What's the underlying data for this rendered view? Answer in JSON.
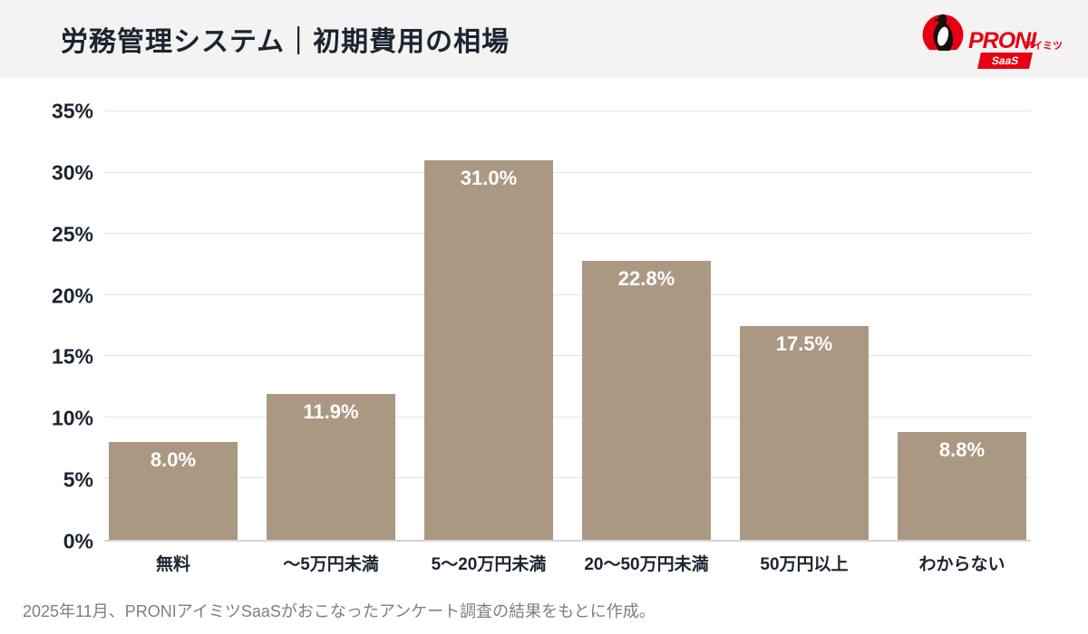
{
  "header": {
    "title": "労務管理システム｜初期費用の相場",
    "logo": {
      "brand": "PRONI",
      "sub": "アイミツ",
      "badge": "SaaS",
      "brand_color": "#e60012",
      "mark": "penguin-on-red-circle"
    }
  },
  "chart_data": {
    "type": "bar",
    "title": "労務管理システム｜初期費用の相場",
    "categories": [
      "無料",
      "～5万円未満",
      "5～20万円未満",
      "20～50万円未満",
      "50万円以上",
      "わからない"
    ],
    "values": [
      8.0,
      11.9,
      31.0,
      22.8,
      17.5,
      8.8
    ],
    "value_labels": [
      "8.0%",
      "11.9%",
      "31.0%",
      "22.8%",
      "17.5%",
      "8.8%"
    ],
    "xlabel": "",
    "ylabel": "",
    "ylim": [
      0,
      35
    ],
    "ytick_step": 5,
    "ytick_suffix": "%",
    "grid": true,
    "legend": false,
    "bar_color": "#ab9883",
    "value_label_color": "#ffffff"
  },
  "footer": {
    "note": "2025年11月、PRONIアイミツSaaSがおこなったアンケート調査の結果をもとに作成。"
  },
  "colors": {
    "header_bg": "#f3f3f3",
    "text_dark": "#1b2430",
    "grid": "#e4e4e4",
    "baseline": "#d4d4d4",
    "footer_text": "#7f7f7f",
    "brand_red": "#e60012"
  }
}
